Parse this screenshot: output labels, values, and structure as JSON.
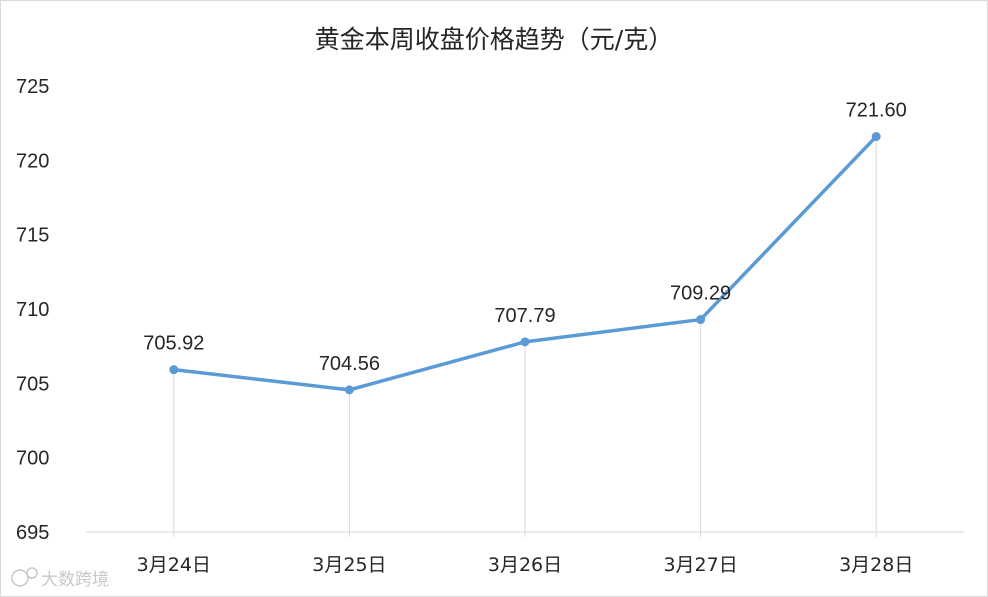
{
  "chart_data": {
    "type": "line",
    "title": "黄金本周收盘价格趋势（元/克）",
    "xlabel": "",
    "ylabel": "",
    "categories": [
      "3月24日",
      "3月25日",
      "3月26日",
      "3月27日",
      "3月28日"
    ],
    "series": [
      {
        "values": [
          705.92,
          704.56,
          707.79,
          709.29,
          721.6
        ],
        "data_labels": [
          "705.92",
          "704.56",
          "707.79",
          "709.29",
          "721.60"
        ],
        "color": "#5b9bd5"
      }
    ],
    "ylim": [
      695,
      725
    ],
    "yticks": [
      "695",
      "700",
      "705",
      "710",
      "715",
      "720",
      "725"
    ],
    "grid": false,
    "drop_lines": true,
    "legend": "none"
  },
  "watermark": {
    "text": "大数跨境"
  }
}
